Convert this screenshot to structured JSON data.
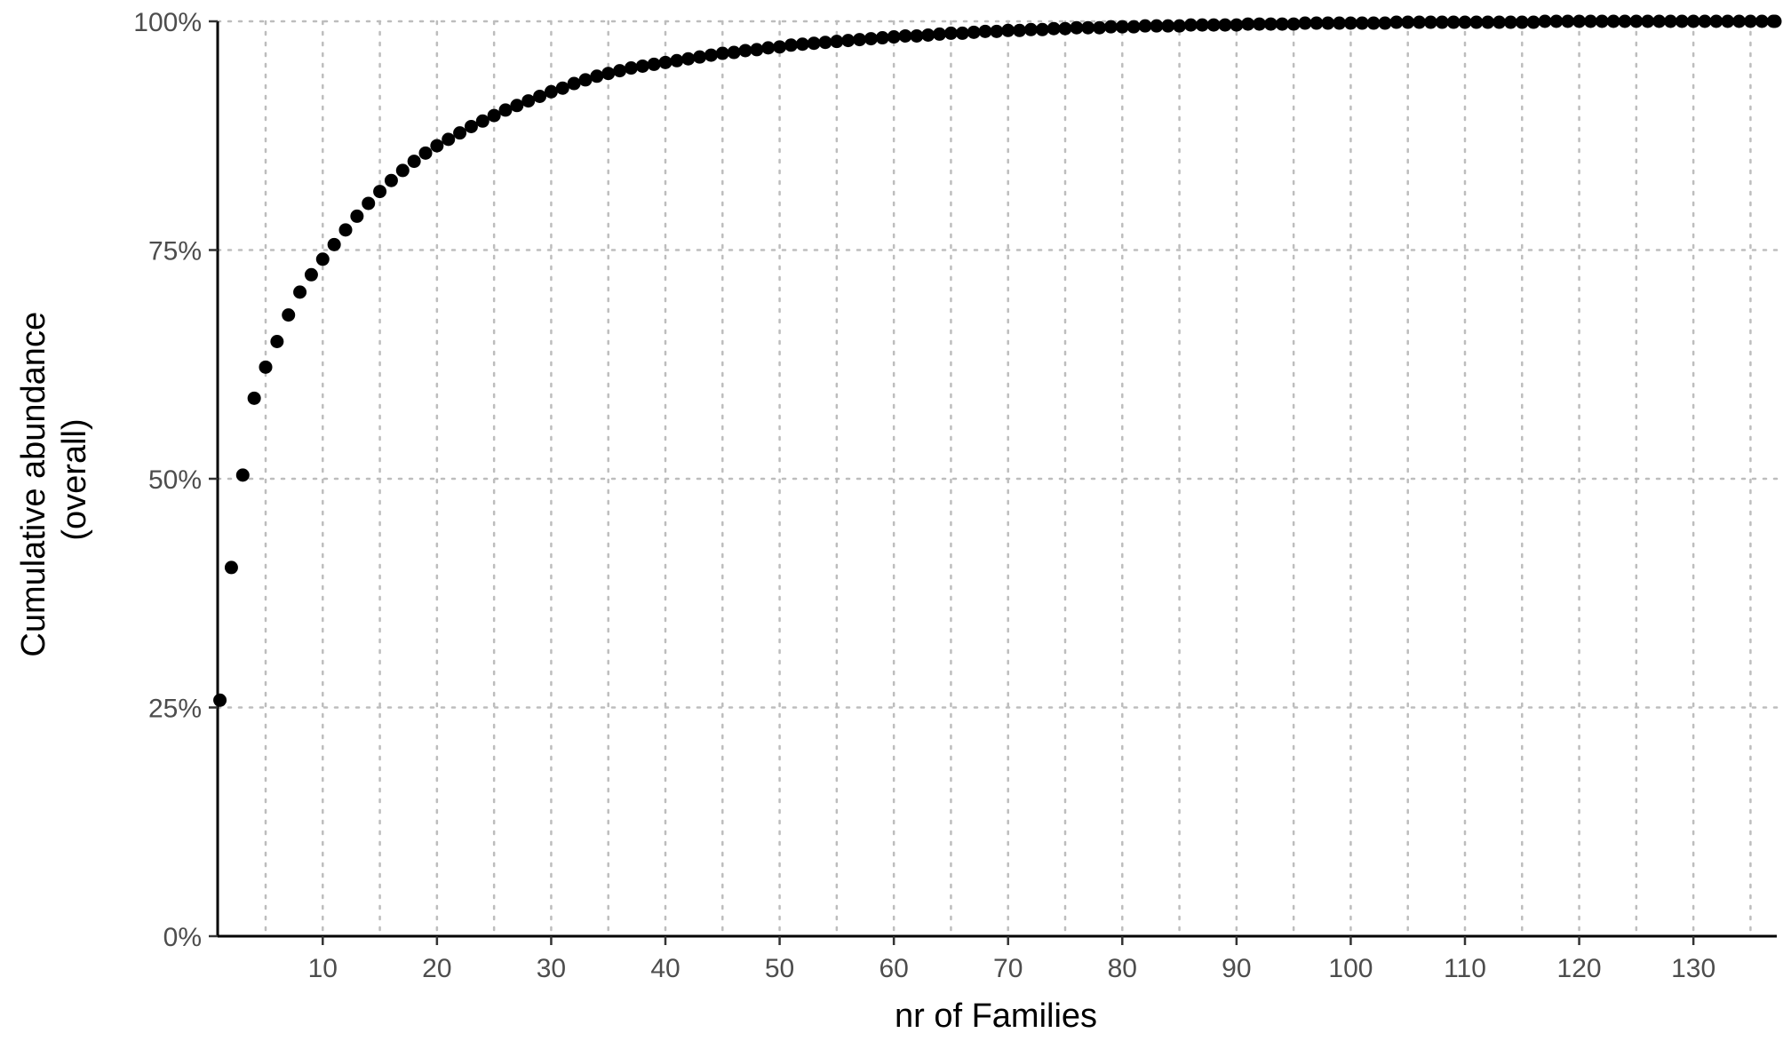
{
  "chart_data": {
    "type": "scatter",
    "title": "",
    "xlabel": "nr of Families",
    "ylabel_lines": [
      "Cumulative abundance",
      "(overall)"
    ],
    "xlim": [
      0.8,
      137.3
    ],
    "ylim": [
      0,
      100
    ],
    "x_ticks": [
      10,
      20,
      30,
      40,
      50,
      60,
      70,
      80,
      90,
      100,
      110,
      120,
      130
    ],
    "x_tick_labels": [
      "10",
      "20",
      "30",
      "40",
      "50",
      "60",
      "70",
      "80",
      "90",
      "100",
      "110",
      "120",
      "130"
    ],
    "y_ticks": [
      0,
      25,
      50,
      75,
      100
    ],
    "y_tick_labels": [
      "0%",
      "25%",
      "50%",
      "75%",
      "100%"
    ],
    "x_grid_minor": [
      5,
      15,
      25,
      35,
      45,
      55,
      65,
      75,
      85,
      95,
      105,
      115,
      125,
      135
    ],
    "grid": true,
    "point_color": "#000000",
    "series": [
      {
        "x": [
          1,
          2,
          3,
          4,
          5,
          6,
          7,
          8,
          9,
          10,
          11,
          12,
          13,
          14,
          15,
          16,
          17,
          18,
          19,
          20,
          21,
          22,
          23,
          24,
          25,
          26,
          27,
          28,
          29,
          30,
          31,
          32,
          33,
          34,
          35,
          36,
          37,
          38,
          39,
          40,
          41,
          42,
          43,
          44,
          45,
          46,
          47,
          48,
          49,
          50,
          51,
          52,
          53,
          54,
          55,
          56,
          57,
          58,
          59,
          60,
          61,
          62,
          63,
          64,
          65,
          66,
          67,
          68,
          69,
          70,
          71,
          72,
          73,
          74,
          75,
          76,
          77,
          78,
          79,
          80,
          81,
          82,
          83,
          84,
          85,
          86,
          87,
          88,
          89,
          90,
          91,
          92,
          93,
          94,
          95,
          96,
          97,
          98,
          99,
          100,
          101,
          102,
          103,
          104,
          105,
          106,
          107,
          108,
          109,
          110,
          111,
          112,
          113,
          114,
          115,
          116,
          117,
          118,
          119,
          120,
          121,
          122,
          123,
          124,
          125,
          126,
          127,
          128,
          129,
          130,
          131,
          132,
          133,
          134,
          135,
          136,
          137,
          138
        ],
        "values": [
          25.8,
          40.3,
          50.4,
          58.8,
          62.2,
          65.0,
          67.9,
          70.4,
          72.3,
          74.0,
          75.6,
          77.2,
          78.7,
          80.1,
          81.4,
          82.6,
          83.7,
          84.7,
          85.6,
          86.4,
          87.1,
          87.8,
          88.5,
          89.1,
          89.7,
          90.3,
          90.8,
          91.3,
          91.8,
          92.3,
          92.7,
          93.2,
          93.6,
          94.0,
          94.3,
          94.6,
          94.9,
          95.1,
          95.3,
          95.5,
          95.7,
          95.9,
          96.1,
          96.3,
          96.5,
          96.6,
          96.8,
          96.9,
          97.1,
          97.2,
          97.4,
          97.5,
          97.6,
          97.7,
          97.8,
          97.9,
          98.0,
          98.1,
          98.2,
          98.3,
          98.4,
          98.4,
          98.5,
          98.6,
          98.7,
          98.7,
          98.8,
          98.9,
          98.9,
          99.0,
          99.0,
          99.1,
          99.1,
          99.2,
          99.2,
          99.3,
          99.3,
          99.3,
          99.4,
          99.4,
          99.4,
          99.5,
          99.5,
          99.5,
          99.5,
          99.6,
          99.6,
          99.6,
          99.6,
          99.6,
          99.7,
          99.7,
          99.7,
          99.7,
          99.7,
          99.8,
          99.8,
          99.8,
          99.8,
          99.8,
          99.8,
          99.8,
          99.8,
          99.9,
          99.9,
          99.9,
          99.9,
          99.9,
          99.9,
          99.9,
          99.9,
          99.9,
          99.9,
          99.9,
          99.9,
          99.9,
          100.0,
          100.0,
          100.0,
          100.0,
          100.0,
          100.0,
          100.0,
          100.0,
          100.0,
          100.0,
          100.0,
          100.0,
          100.0,
          100.0,
          100.0,
          100.0,
          100.0,
          100.0,
          100.0,
          100.0,
          100.0,
          100.0
        ]
      }
    ]
  }
}
